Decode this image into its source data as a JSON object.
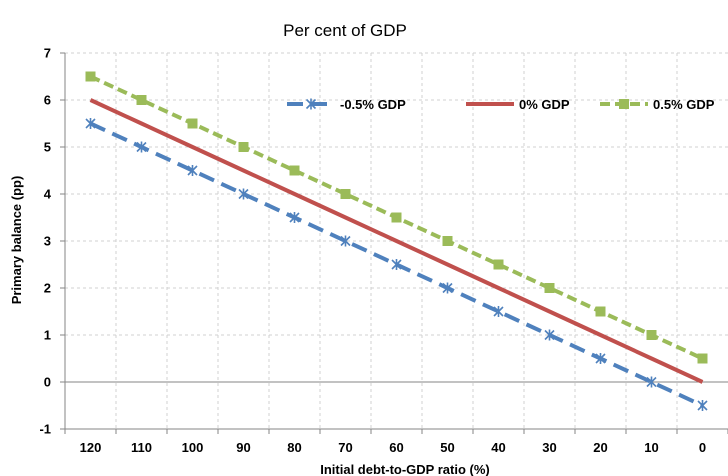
{
  "chart_data": {
    "type": "line",
    "title": "Per cent of GDP",
    "xlabel": "Initial debt-to-GDP ratio (%)",
    "ylabel": "Primary balance  (pp)",
    "x": [
      120,
      110,
      100,
      90,
      80,
      70,
      60,
      50,
      40,
      30,
      20,
      10,
      0
    ],
    "xlim": [
      120,
      0
    ],
    "ylim": [
      -1,
      7
    ],
    "y_ticks": [
      -1,
      0,
      1,
      2,
      3,
      4,
      5,
      6,
      7
    ],
    "grid": true,
    "legend_position": "top-right",
    "series": [
      {
        "name": "-0.5% GDP",
        "color": "#4F81BD",
        "line_style": "dashed",
        "marker": "star",
        "values": [
          5.5,
          5.0,
          4.5,
          4.0,
          3.5,
          3.0,
          2.5,
          2.0,
          1.5,
          1.0,
          0.5,
          0.0,
          -0.5
        ]
      },
      {
        "name": "0% GDP",
        "color": "#C0504D",
        "line_style": "solid",
        "marker": "none",
        "values": [
          6.0,
          5.5,
          5.0,
          4.5,
          4.0,
          3.5,
          3.0,
          2.5,
          2.0,
          1.5,
          1.0,
          0.5,
          0.0
        ]
      },
      {
        "name": "0.5% GDP",
        "color": "#9BBB59",
        "line_style": "dashed",
        "marker": "square",
        "values": [
          6.5,
          6.0,
          5.5,
          5.0,
          4.5,
          4.0,
          3.5,
          3.0,
          2.5,
          2.0,
          1.5,
          1.0,
          0.5
        ]
      }
    ]
  }
}
